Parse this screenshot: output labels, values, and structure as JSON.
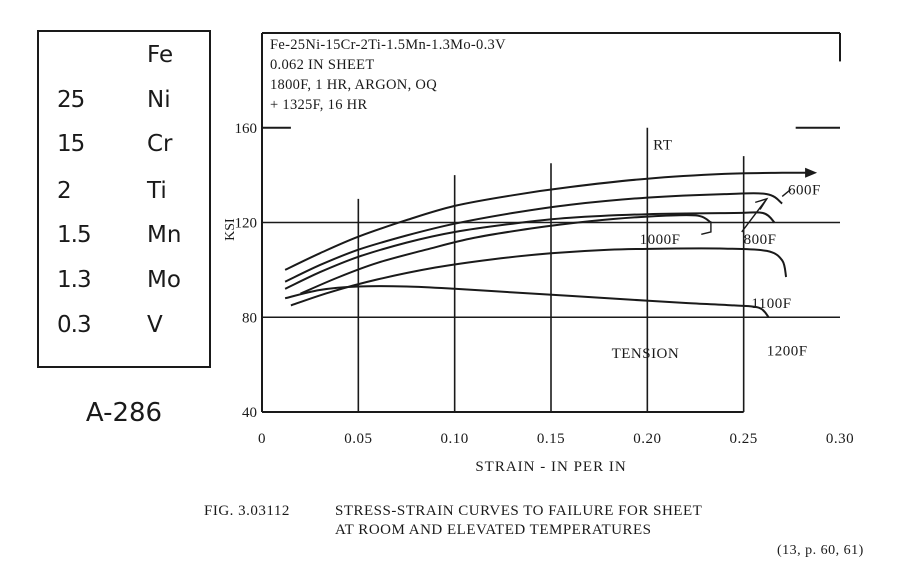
{
  "composition": {
    "rows": [
      {
        "amount": "",
        "element": "Fe"
      },
      {
        "amount": "25",
        "element": "Ni"
      },
      {
        "amount": "15",
        "element": "Cr"
      },
      {
        "amount": "2",
        "element": "Ti"
      },
      {
        "amount": "1.5",
        "element": "Mn"
      },
      {
        "amount": "1.3",
        "element": "Mo"
      },
      {
        "amount": "0.3",
        "element": "V"
      }
    ],
    "alloy_name": "A-286"
  },
  "figure": {
    "caption_number": "FIG. 3.03112",
    "caption_line1": "STRESS-STRAIN CURVES TO FAILURE FOR SHEET",
    "caption_line2": "AT ROOM AND ELEVATED TEMPERATURES",
    "reference": "(13, p. 60, 61)"
  },
  "chart_data": {
    "type": "line",
    "info_lines": [
      "Fe-25Ni-15Cr-2Ti-1.5Mn-1.3Mo-0.3V",
      "0.062 IN SHEET",
      "1800F, 1 HR, ARGON, OQ",
      "+ 1325F, 16 HR"
    ],
    "xlabel": "STRAIN - IN PER IN",
    "ylabel": "KSI",
    "xlim": [
      0,
      0.3
    ],
    "ylim": [
      40,
      200
    ],
    "x_ticks": [
      {
        "v": 0,
        "label": "0"
      },
      {
        "v": 0.05,
        "label": "0.05"
      },
      {
        "v": 0.1,
        "label": "0.10"
      },
      {
        "v": 0.15,
        "label": "0.15"
      },
      {
        "v": 0.2,
        "label": "0.20"
      },
      {
        "v": 0.25,
        "label": "0.25"
      },
      {
        "v": 0.3,
        "label": "0.30"
      }
    ],
    "y_ticks": [
      {
        "v": 40,
        "label": "40"
      },
      {
        "v": 80,
        "label": "80"
      },
      {
        "v": 120,
        "label": "120"
      },
      {
        "v": 160,
        "label": "160"
      }
    ],
    "annotation": "TENSION",
    "series": [
      {
        "name": "RT",
        "label_at": [
          0.203,
          153
        ],
        "points": [
          [
            0.012,
            100
          ],
          [
            0.03,
            107
          ],
          [
            0.05,
            114
          ],
          [
            0.075,
            121
          ],
          [
            0.1,
            127
          ],
          [
            0.13,
            131.5
          ],
          [
            0.16,
            135
          ],
          [
            0.2,
            138.5
          ],
          [
            0.24,
            140.5
          ],
          [
            0.27,
            141
          ],
          [
            0.285,
            141
          ]
        ]
      },
      {
        "name": "600F",
        "label_at": [
          0.273,
          134
        ],
        "points": [
          [
            0.012,
            95
          ],
          [
            0.03,
            102
          ],
          [
            0.05,
            108.5
          ],
          [
            0.075,
            114.5
          ],
          [
            0.1,
            119.5
          ],
          [
            0.13,
            124
          ],
          [
            0.16,
            127.5
          ],
          [
            0.2,
            130.5
          ],
          [
            0.24,
            132
          ],
          [
            0.262,
            132
          ],
          [
            0.27,
            128
          ]
        ]
      },
      {
        "name": "800F",
        "label_at": [
          0.25,
          113
        ],
        "points": [
          [
            0.012,
            92
          ],
          [
            0.03,
            99
          ],
          [
            0.05,
            105.5
          ],
          [
            0.075,
            111.5
          ],
          [
            0.1,
            116
          ],
          [
            0.13,
            119.5
          ],
          [
            0.16,
            122
          ],
          [
            0.2,
            123.5
          ],
          [
            0.245,
            124
          ],
          [
            0.26,
            124
          ],
          [
            0.266,
            120
          ]
        ]
      },
      {
        "name": "1000F",
        "label_at": [
          0.196,
          113
        ],
        "points": [
          [
            0.02,
            90
          ],
          [
            0.04,
            97
          ],
          [
            0.06,
            103
          ],
          [
            0.085,
            108.5
          ],
          [
            0.11,
            113.5
          ],
          [
            0.14,
            117.5
          ],
          [
            0.17,
            120.5
          ],
          [
            0.2,
            122.5
          ],
          [
            0.225,
            123
          ],
          [
            0.233,
            120
          ]
        ]
      },
      {
        "name": "1100F",
        "label_at": [
          0.254,
          86
        ],
        "points": [
          [
            0.015,
            85
          ],
          [
            0.035,
            90.5
          ],
          [
            0.06,
            96
          ],
          [
            0.09,
            101
          ],
          [
            0.12,
            104.5
          ],
          [
            0.15,
            107
          ],
          [
            0.18,
            108.5
          ],
          [
            0.21,
            109
          ],
          [
            0.24,
            109
          ],
          [
            0.262,
            108
          ],
          [
            0.27,
            104
          ],
          [
            0.272,
            97
          ]
        ]
      },
      {
        "name": "1200F",
        "label_at": [
          0.262,
          66
        ],
        "points": [
          [
            0.012,
            88
          ],
          [
            0.03,
            91.5
          ],
          [
            0.05,
            93
          ],
          [
            0.075,
            93
          ],
          [
            0.1,
            92
          ],
          [
            0.13,
            90.5
          ],
          [
            0.16,
            89
          ],
          [
            0.19,
            87.5
          ],
          [
            0.22,
            86
          ],
          [
            0.245,
            85
          ],
          [
            0.258,
            84
          ],
          [
            0.263,
            80
          ]
        ]
      }
    ]
  }
}
